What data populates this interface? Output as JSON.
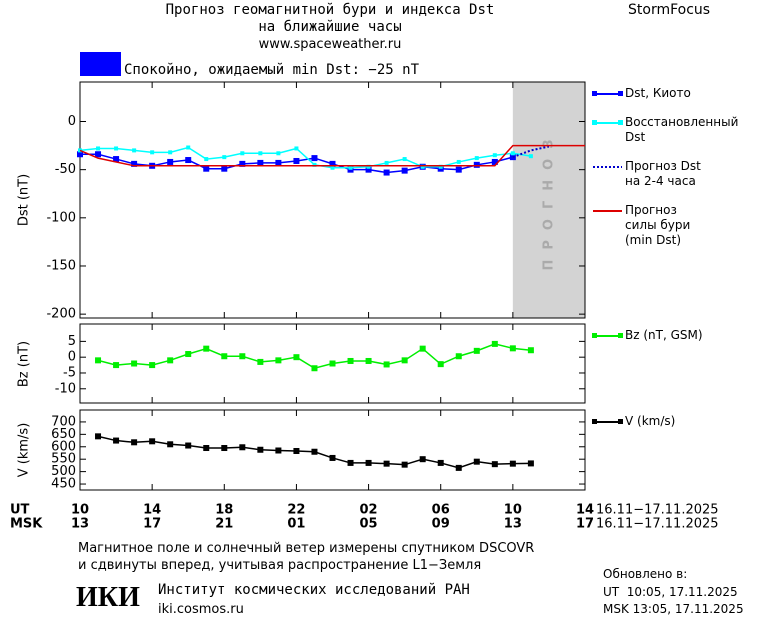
{
  "header": {
    "title": "Прогноз геомагнитной бури и индекса Dst",
    "subtitle": "на ближайшие часы",
    "url": "www.spaceweather.ru",
    "brand": "StormFocus"
  },
  "status": {
    "text": "Спокойно, ожидаемый min Dst: −25 nT",
    "color": "#0000ff"
  },
  "chart_data": [
    {
      "type": "line",
      "y_label": "Dst (nT)",
      "xlim": [
        0,
        28
      ],
      "ylim": [
        -204,
        41
      ],
      "yticks": [
        0,
        -50,
        -100,
        -150,
        -200
      ],
      "forecast": {
        "x": [
          24,
          28
        ],
        "label": "ПРОГНОЗ",
        "color": "#d3d3d3"
      },
      "series": [
        {
          "name": "Dst, Киото",
          "color": "#0000ff",
          "marker": "square",
          "x": [
            0,
            1,
            2,
            3,
            4,
            5,
            6,
            7,
            8,
            9,
            10,
            11,
            12,
            13,
            14,
            15,
            16,
            17,
            18,
            19,
            20,
            21,
            22,
            23,
            24
          ],
          "values": [
            -34,
            -34,
            -39,
            -44,
            -46,
            -42,
            -40,
            -49,
            -49,
            -44,
            -43,
            -43,
            -41,
            -38,
            -44,
            -50,
            -50,
            -53,
            -51,
            -47,
            -49,
            -50,
            -45,
            -42,
            -37
          ]
        },
        {
          "name": "Восстановленный\nDst",
          "color": "#00ffff",
          "marker": "small-square",
          "x": [
            0,
            1,
            2,
            3,
            4,
            5,
            6,
            7,
            8,
            9,
            10,
            11,
            12,
            13,
            14,
            15,
            16,
            17,
            18,
            19,
            20,
            21,
            22,
            23,
            24,
            25
          ],
          "values": [
            -30,
            -28,
            -28,
            -30,
            -32,
            -32,
            -27,
            -39,
            -37,
            -33,
            -33,
            -33,
            -28,
            -45,
            -48,
            -48,
            -47,
            -43,
            -39,
            -47,
            -47,
            -42,
            -38,
            -35,
            -33,
            -36
          ]
        },
        {
          "name": "Прогноз Dst\nна 2-4 часа",
          "color": "#0000cc",
          "marker": "dotted",
          "x": [
            24,
            25,
            26
          ],
          "values": [
            -37,
            -30,
            -26
          ]
        },
        {
          "name": "Прогноз\nсилы бури\n(min Dst)",
          "color": "#dd0000",
          "marker": "none",
          "x": [
            0,
            1,
            3,
            23,
            24,
            28
          ],
          "values": [
            -30,
            -38,
            -46,
            -46,
            -25,
            -25
          ]
        }
      ]
    },
    {
      "type": "line",
      "y_label": "Bz (nT)",
      "xlim": [
        0,
        28
      ],
      "ylim": [
        -14.5,
        10.5
      ],
      "yticks": [
        5,
        0,
        -5,
        -10
      ],
      "series": [
        {
          "name": "Bz (nT, GSM)",
          "color": "#00ee00",
          "marker": "square",
          "x": [
            1,
            2,
            3,
            4,
            5,
            6,
            7,
            8,
            9,
            10,
            11,
            12,
            13,
            14,
            15,
            16,
            17,
            18,
            19,
            20,
            21,
            22,
            23,
            24,
            25
          ],
          "values": [
            -1,
            -2.5,
            -2,
            -2.5,
            -1,
            1,
            2.7,
            0.3,
            0.3,
            -1.5,
            -1,
            0,
            -3.5,
            -2,
            -1.2,
            -1.2,
            -2.3,
            -1,
            2.7,
            -2.2,
            0.3,
            2,
            4.2,
            2.8,
            2.2
          ]
        }
      ]
    },
    {
      "type": "line",
      "y_label": "V (km/s)",
      "xlim": [
        0,
        28
      ],
      "ylim": [
        426,
        748
      ],
      "yticks": [
        700,
        650,
        600,
        550,
        500,
        450
      ],
      "x_label": "UT",
      "x_label_msk": "MSK",
      "x_range": "16.11−17.11.2025",
      "x_range_msk": "16.11−17.11.2025",
      "xticks": [
        {
          "value": 0,
          "label": "10"
        },
        {
          "value": 4,
          "label": "14"
        },
        {
          "value": 8,
          "label": "18"
        },
        {
          "value": 12,
          "label": "22"
        },
        {
          "value": 16,
          "label": "02"
        },
        {
          "value": 20,
          "label": "06"
        },
        {
          "value": 24,
          "label": "10"
        },
        {
          "value": 28,
          "label": "14"
        }
      ],
      "xticks_msk": [
        {
          "value": 0,
          "label": "13"
        },
        {
          "value": 4,
          "label": "17"
        },
        {
          "value": 8,
          "label": "21"
        },
        {
          "value": 12,
          "label": "01"
        },
        {
          "value": 16,
          "label": "05"
        },
        {
          "value": 20,
          "label": "09"
        },
        {
          "value": 24,
          "label": "13"
        },
        {
          "value": 28,
          "label": "17"
        }
      ],
      "series": [
        {
          "name": "V (km/s)",
          "color": "#000000",
          "marker": "square",
          "x": [
            1,
            2,
            3,
            4,
            5,
            6,
            7,
            8,
            9,
            10,
            11,
            12,
            13,
            14,
            15,
            16,
            17,
            18,
            19,
            20,
            21,
            22,
            23,
            24,
            25
          ],
          "values": [
            642,
            625,
            618,
            622,
            610,
            605,
            595,
            595,
            598,
            588,
            585,
            583,
            580,
            555,
            535,
            535,
            532,
            528,
            550,
            535,
            515,
            540,
            530,
            532,
            533
          ]
        }
      ]
    }
  ],
  "footer": {
    "note_1": "Магнитное поле и солнечный ветер измерены спутником DSCOVR",
    "note_2": "и сдвинуты вперед, учитывая распространение L1−Земля",
    "logo": "ИКИ",
    "institute": "Институт космических исследований РАН",
    "site": "iki.cosmos.ru",
    "updated": "Обновлено в:",
    "updated_ut": "UT  10:05, 17.11.2025",
    "updated_msk": "MSK 13:05, 17.11.2025"
  }
}
